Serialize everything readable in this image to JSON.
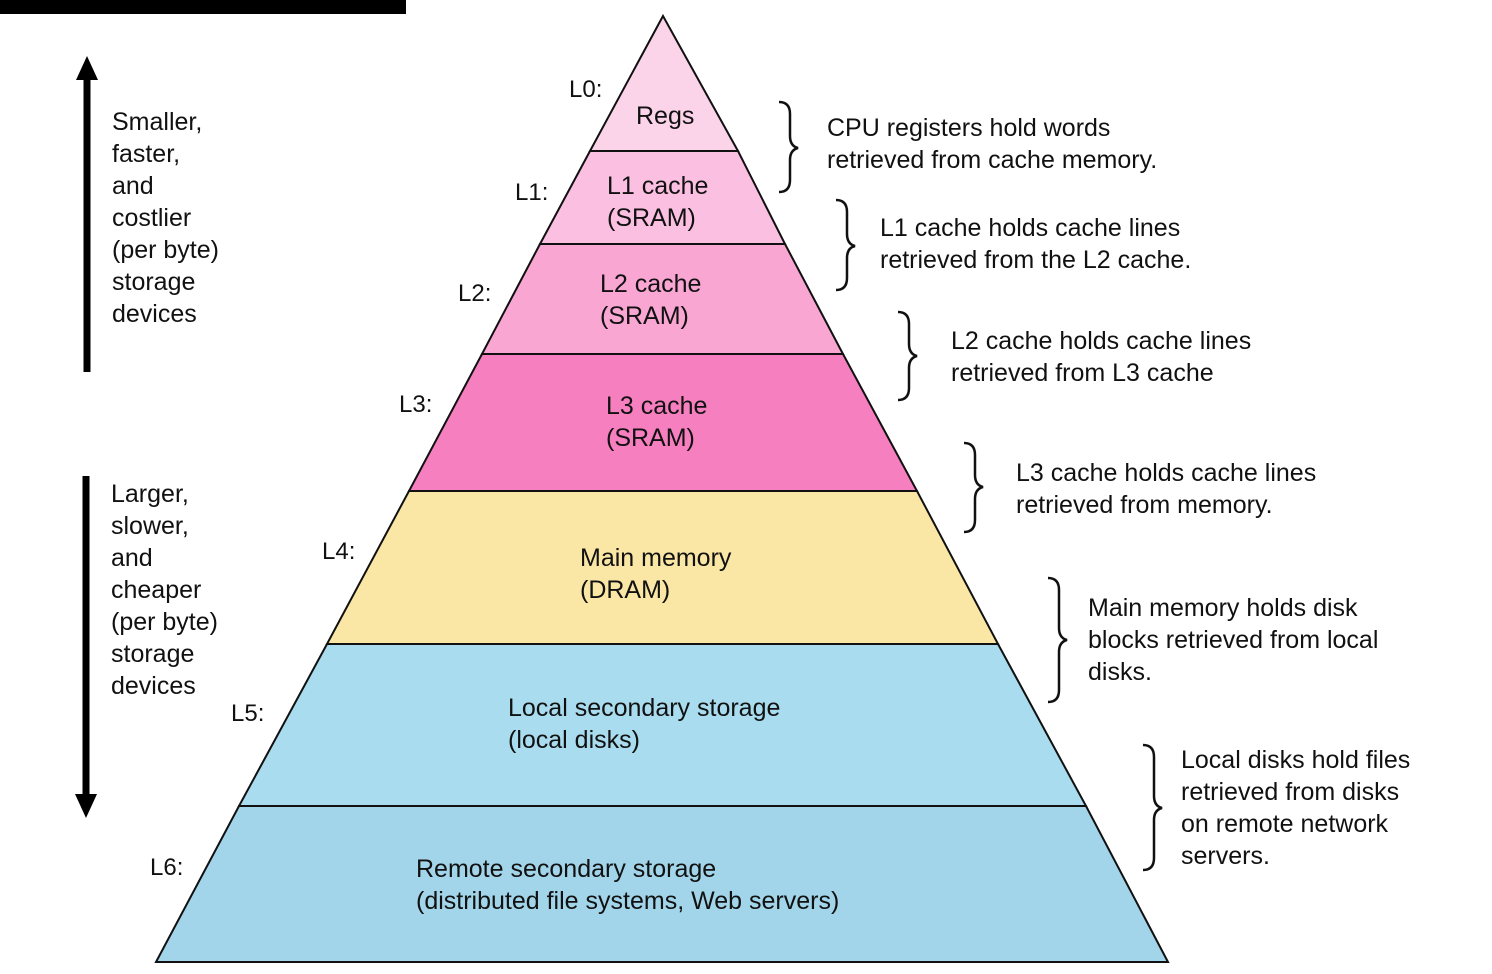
{
  "colors": {
    "regs": "#fcd4ea",
    "l1": "#fbc0e1",
    "l2": "#f9a6d3",
    "l3": "#f67fc0",
    "main_memory": "#fae7a5",
    "local_storage": "#a9dcee",
    "remote_storage": "#a2d5ea",
    "outline": "#111111",
    "arrow": "#000000"
  },
  "levels": [
    {
      "label": "L0:",
      "name": "Regs",
      "description": "CPU registers hold words\nretrieved from cache memory."
    },
    {
      "label": "L1:",
      "name": "L1 cache\n(SRAM)",
      "description": "L1 cache holds cache lines\nretrieved from the L2 cache."
    },
    {
      "label": "L2:",
      "name": "L2 cache\n(SRAM)",
      "description": "L2 cache holds cache lines\n retrieved from L3 cache"
    },
    {
      "label": "L3:",
      "name": "L3 cache\n(SRAM)",
      "description": "L3 cache holds cache lines\n retrieved from memory."
    },
    {
      "label": "L4:",
      "name": "Main memory\n(DRAM)",
      "description": "Main memory holds disk\nblocks retrieved from local\ndisks."
    },
    {
      "label": "L5:",
      "name": "Local secondary storage\n(local disks)",
      "description": "Local disks hold files\nretrieved from disks\non remote network\nservers."
    },
    {
      "label": "L6:",
      "name": "Remote secondary storage\n(distributed file systems, Web servers)"
    }
  ],
  "side_labels": {
    "top": "Smaller,\nfaster,\nand\ncostlier\n(per byte)\nstorage\ndevices",
    "bottom": "Larger,\nslower,\nand\ncheaper\n(per byte)\nstorage\ndevices"
  }
}
